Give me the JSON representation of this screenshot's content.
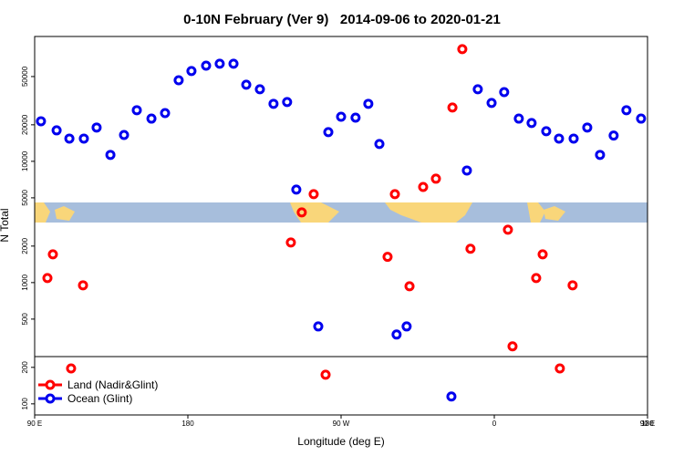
{
  "chart_data": {
    "type": "scatter",
    "title": "0-10N February (Ver 9)   2014-09-06 to 2020-01-21",
    "x_label": "Longitude (deg E)",
    "y_label": "N Total",
    "log_y": true,
    "legend": "bottom-left",
    "xlim": [
      90,
      450
    ],
    "ylim": [
      81,
      107000
    ],
    "xticks": [
      {
        "value": 90,
        "label": "90 E"
      },
      180,
      {
        "value": 270,
        "label": "90 W"
      },
      {
        "value": 360,
        "label": "0"
      },
      {
        "value": 450,
        "label": "90 E"
      },
      {
        "value": 540,
        "label": "180"
      }
    ],
    "yticks": [
      100,
      200,
      500,
      1000,
      2000,
      5000,
      10000,
      20000,
      50000
    ],
    "series": [
      {
        "name": "Land (Nadir&Glint)",
        "color": "#ff0000",
        "x": [
          97.5,
          100.7,
          111.4,
          118.4,
          240.5,
          246.9,
          253.9,
          260.9,
          297.3,
          301.6,
          310.2,
          318.2,
          325.7,
          335.4,
          341.2,
          346.0,
          368.0,
          370.7,
          384.6,
          388.4,
          398.5,
          406.0
        ],
        "values": [
          1090,
          1710,
          196,
          950,
          2140,
          3790,
          5360,
          174,
          1630,
          5360,
          933,
          6150,
          7190,
          27800,
          84100,
          1900,
          2730,
          298,
          1090,
          1710,
          196,
          950
        ]
      },
      {
        "name": "Ocean (Glint)",
        "color": "#0000ee",
        "x": [
          93.7,
          102.9,
          110.4,
          118.9,
          126.4,
          134.5,
          142.5,
          150,
          158.6,
          166.6,
          174.6,
          182.1,
          190.7,
          198.7,
          206.8,
          214.3,
          222.3,
          230.3,
          238.3,
          243.7,
          256.6,
          262.5,
          270,
          278.5,
          286,
          292.5,
          302.6,
          308.5,
          334.8,
          343.9,
          350.3,
          358.4,
          365.8,
          374.4,
          381.9,
          390.5,
          398,
          406.6,
          414.6,
          422.1,
          430.1,
          437.6,
          446.2
        ],
        "values": [
          21400,
          18000,
          15400,
          15400,
          19000,
          11300,
          16500,
          26400,
          22500,
          25000,
          46600,
          55500,
          61500,
          63800,
          63800,
          42800,
          39300,
          29800,
          30800,
          5850,
          435,
          17400,
          23300,
          22900,
          29800,
          13900,
          373,
          435,
          115,
          8400,
          39300,
          30300,
          37200,
          22500,
          20700,
          17700,
          15400,
          15400,
          19000,
          11300,
          16300,
          26400,
          22500
        ]
      }
    ]
  }
}
